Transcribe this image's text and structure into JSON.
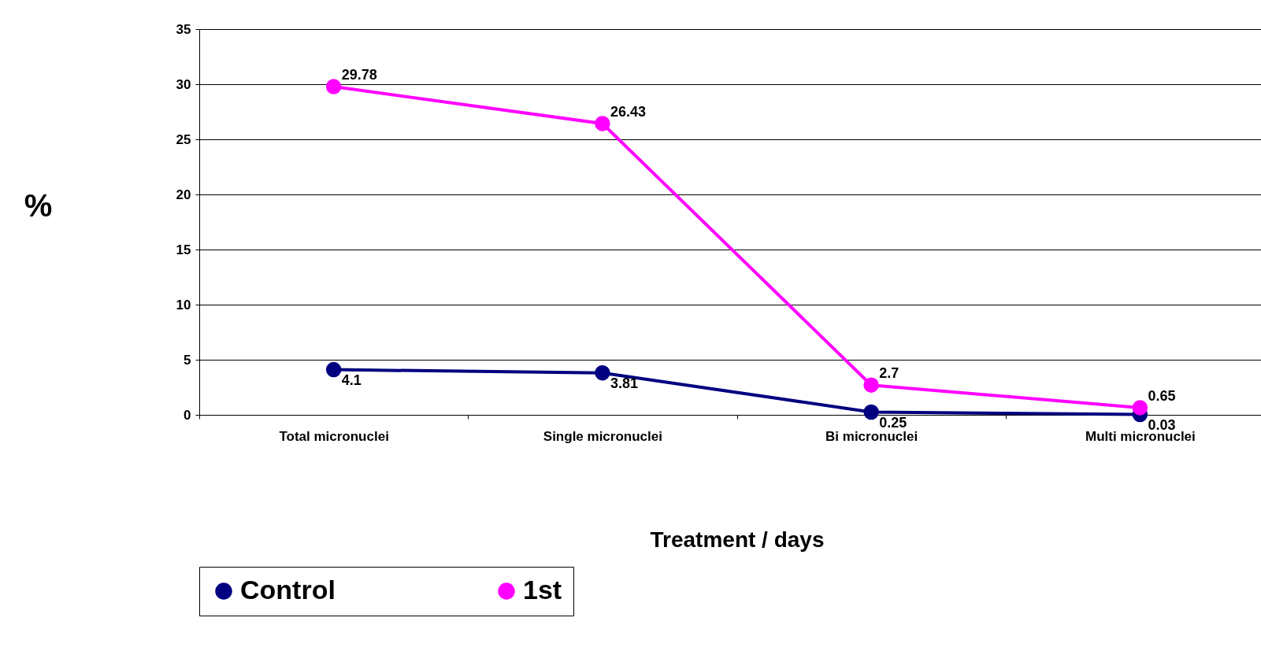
{
  "chart_data": {
    "type": "line",
    "xlabel": "Treatment / days",
    "ylabel": "%",
    "categories": [
      "Total micronuclei",
      "Single micronuclei",
      "Bi micronuclei",
      "Multi micronuclei"
    ],
    "series": [
      {
        "name": "Control",
        "color": "#000080",
        "values": [
          4.1,
          3.81,
          0.25,
          0.03
        ]
      },
      {
        "name": "1st",
        "color": "#ff00ff",
        "values": [
          29.78,
          26.43,
          2.7,
          0.65
        ]
      }
    ],
    "ylim": [
      0,
      35
    ],
    "yticks": [
      0,
      5,
      10,
      15,
      20,
      25,
      30,
      35
    ],
    "grid": "y",
    "legend": "bottom",
    "marker": "circle",
    "line_style": "solid",
    "data_labels": true
  }
}
